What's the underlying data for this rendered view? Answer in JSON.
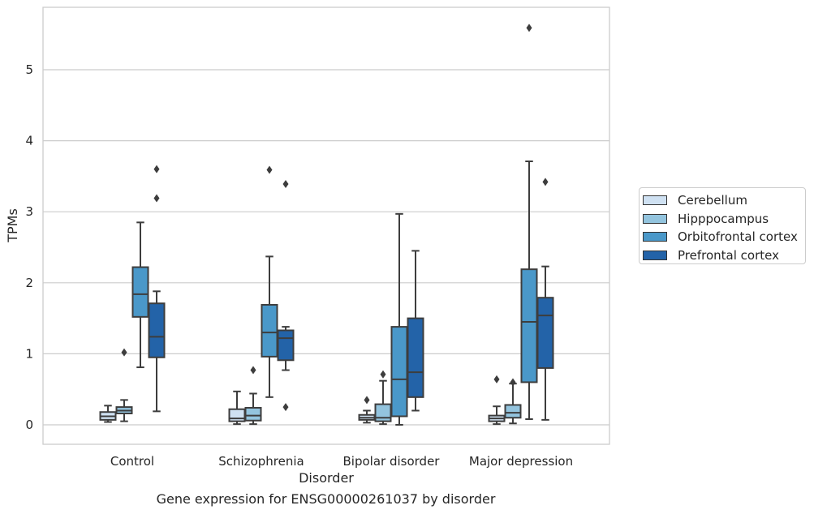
{
  "caption": "Gene expression for ENSG00000261037 by disorder",
  "chart_data": {
    "type": "box",
    "xlabel": "Disorder",
    "ylabel": "TPMs",
    "ylim": [
      -0.27,
      5.9
    ],
    "yticks": [
      0,
      1,
      2,
      3,
      4,
      5
    ],
    "grid": "horizontal",
    "legend_position": "right",
    "categories": [
      "Control",
      "Schizophrenia",
      "Bipolar disorder",
      "Major depression"
    ],
    "series": [
      {
        "name": "Cerebellum",
        "color": "#cfe1f2",
        "boxes": [
          {
            "whislo": 0.04,
            "q1": 0.07,
            "med": 0.12,
            "q3": 0.18,
            "whishi": 0.27,
            "fliers": []
          },
          {
            "whislo": 0.01,
            "q1": 0.05,
            "med": 0.09,
            "q3": 0.22,
            "whishi": 0.47,
            "fliers": []
          },
          {
            "whislo": 0.03,
            "q1": 0.07,
            "med": 0.1,
            "q3": 0.14,
            "whishi": 0.2,
            "fliers": [
              0.35
            ]
          },
          {
            "whislo": 0.01,
            "q1": 0.05,
            "med": 0.09,
            "q3": 0.13,
            "whishi": 0.26,
            "fliers": [
              0.64
            ]
          }
        ]
      },
      {
        "name": "Hipppocampus",
        "color": "#93c4de",
        "boxes": [
          {
            "whislo": 0.05,
            "q1": 0.16,
            "med": 0.2,
            "q3": 0.25,
            "whishi": 0.35,
            "fliers": [
              1.02
            ]
          },
          {
            "whislo": 0.01,
            "q1": 0.06,
            "med": 0.13,
            "q3": 0.24,
            "whishi": 0.44,
            "fliers": [
              0.77
            ]
          },
          {
            "whislo": 0.01,
            "q1": 0.05,
            "med": 0.1,
            "q3": 0.29,
            "whishi": 0.62,
            "fliers": [
              0.71
            ]
          },
          {
            "whislo": 0.02,
            "q1": 0.1,
            "med": 0.17,
            "q3": 0.28,
            "whishi": 0.58,
            "fliers": [
              0.6
            ]
          }
        ]
      },
      {
        "name": "Orbitofrontal cortex",
        "color": "#4a98c9",
        "boxes": [
          {
            "whislo": 0.81,
            "q1": 1.52,
            "med": 1.84,
            "q3": 2.22,
            "whishi": 2.85,
            "fliers": []
          },
          {
            "whislo": 0.39,
            "q1": 0.96,
            "med": 1.3,
            "q3": 1.69,
            "whishi": 2.37,
            "fliers": [
              3.59
            ]
          },
          {
            "whislo": 0.0,
            "q1": 0.12,
            "med": 0.64,
            "q3": 1.38,
            "whishi": 2.97,
            "fliers": []
          },
          {
            "whislo": 0.08,
            "q1": 0.6,
            "med": 1.45,
            "q3": 2.19,
            "whishi": 3.71,
            "fliers": [
              5.59
            ]
          }
        ]
      },
      {
        "name": "Prefrontal cortex",
        "color": "#2363a8",
        "boxes": [
          {
            "whislo": 0.19,
            "q1": 0.95,
            "med": 1.24,
            "q3": 1.71,
            "whishi": 1.88,
            "fliers": [
              3.19,
              3.6
            ]
          },
          {
            "whislo": 0.77,
            "q1": 0.91,
            "med": 1.22,
            "q3": 1.33,
            "whishi": 1.38,
            "fliers": [
              0.25,
              3.39
            ]
          },
          {
            "whislo": 0.2,
            "q1": 0.39,
            "med": 0.74,
            "q3": 1.5,
            "whishi": 2.45,
            "fliers": []
          },
          {
            "whislo": 0.07,
            "q1": 0.8,
            "med": 1.54,
            "q3": 1.79,
            "whishi": 2.23,
            "fliers": [
              3.42
            ]
          }
        ]
      }
    ]
  }
}
